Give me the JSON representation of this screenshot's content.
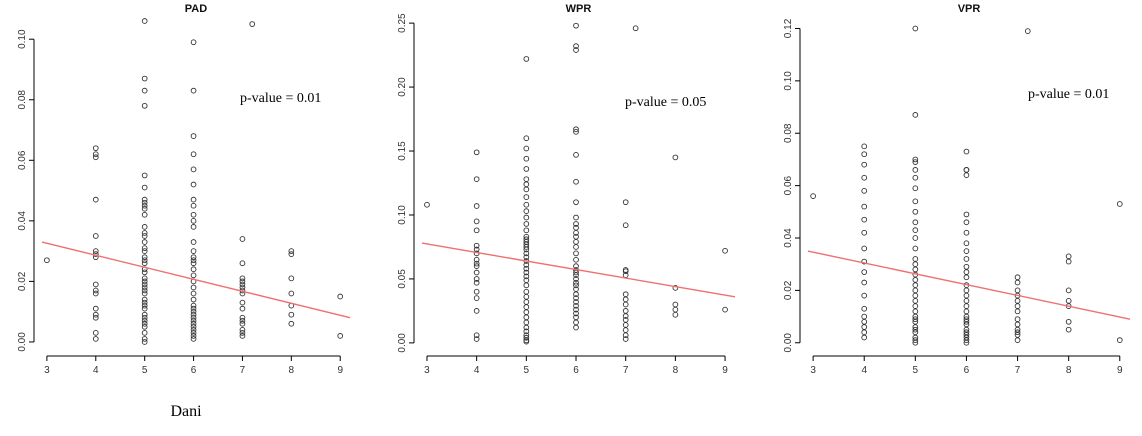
{
  "chart_data": [
    {
      "type": "scatter",
      "title": "PAD",
      "xlabel": "Dani",
      "annotation": "p-value = 0.01",
      "xlim": [
        2.9,
        9.2
      ],
      "ylim": [
        -0.002,
        0.107
      ],
      "xticks": [
        3,
        4,
        5,
        6,
        7,
        8,
        9
      ],
      "yticks": [
        0.0,
        0.02,
        0.04,
        0.06,
        0.08,
        0.1
      ],
      "ytick_labels": [
        "0.00",
        "0.02",
        "0.04",
        "0.06",
        "0.08",
        "0.10"
      ],
      "regression": {
        "x": [
          2.9,
          9.2
        ],
        "y": [
          0.033,
          0.008
        ]
      },
      "x": [
        3,
        4,
        4,
        4,
        4,
        4,
        4,
        4,
        4,
        4,
        4,
        4,
        4,
        4,
        4,
        4,
        4,
        5,
        5,
        5,
        5,
        5,
        5,
        5,
        5,
        5,
        5,
        5,
        5,
        5,
        5,
        5,
        5,
        5,
        5,
        5,
        5,
        5,
        5,
        5,
        5,
        5,
        5,
        5,
        5,
        5,
        5,
        5,
        5,
        5,
        5,
        5,
        5,
        5,
        5,
        5,
        5,
        6,
        6,
        6,
        6,
        6,
        6,
        6,
        6,
        6,
        6,
        6,
        6,
        6,
        6,
        6,
        6,
        6,
        6,
        6,
        6,
        6,
        6,
        6,
        6,
        6,
        6,
        6,
        6,
        6,
        6,
        6,
        6,
        6,
        6,
        7,
        7,
        7,
        7,
        7,
        7,
        7,
        7,
        7,
        7,
        7,
        7,
        7,
        7,
        7,
        7,
        7.2,
        8,
        8,
        8,
        8,
        8,
        8,
        8,
        9,
        9
      ],
      "y": [
        0.027,
        0.064,
        0.062,
        0.061,
        0.047,
        0.035,
        0.03,
        0.029,
        0.028,
        0.019,
        0.017,
        0.016,
        0.011,
        0.009,
        0.008,
        0.003,
        0.001,
        0.106,
        0.087,
        0.083,
        0.078,
        0.055,
        0.051,
        0.047,
        0.046,
        0.045,
        0.044,
        0.042,
        0.038,
        0.036,
        0.035,
        0.033,
        0.031,
        0.03,
        0.028,
        0.027,
        0.026,
        0.024,
        0.023,
        0.021,
        0.02,
        0.019,
        0.018,
        0.017,
        0.016,
        0.014,
        0.013,
        0.012,
        0.011,
        0.009,
        0.008,
        0.007,
        0.006,
        0.005,
        0.003,
        0.001,
        0.0,
        0.099,
        0.083,
        0.068,
        0.062,
        0.057,
        0.052,
        0.047,
        0.045,
        0.042,
        0.04,
        0.038,
        0.033,
        0.03,
        0.028,
        0.027,
        0.026,
        0.024,
        0.022,
        0.02,
        0.018,
        0.016,
        0.014,
        0.012,
        0.011,
        0.01,
        0.009,
        0.008,
        0.007,
        0.006,
        0.005,
        0.004,
        0.003,
        0.002,
        0.001,
        0.034,
        0.026,
        0.021,
        0.02,
        0.019,
        0.018,
        0.017,
        0.016,
        0.013,
        0.011,
        0.008,
        0.007,
        0.006,
        0.004,
        0.003,
        0.002,
        0.105,
        0.03,
        0.029,
        0.021,
        0.016,
        0.012,
        0.009,
        0.006,
        0.015,
        0.002
      ]
    },
    {
      "type": "scatter",
      "title": "WPR",
      "annotation": "p-value = 0.05",
      "xlim": [
        2.9,
        9.2
      ],
      "ylim": [
        -0.004,
        0.254
      ],
      "xticks": [
        3,
        4,
        5,
        6,
        7,
        8,
        9
      ],
      "xtick_labels": [
        "3",
        "4",
        "5",
        "6",
        "7",
        "8",
        "9"
      ],
      "yticks": [
        0.0,
        0.05,
        0.1,
        0.15,
        0.2,
        0.25
      ],
      "ytick_labels": [
        "0.00",
        "0.05",
        "0.10",
        "0.15",
        "0.20",
        "0.25"
      ],
      "regression": {
        "x": [
          2.9,
          9.2
        ],
        "y": [
          0.078,
          0.036
        ]
      },
      "x": [
        3,
        4,
        4,
        4,
        4,
        4,
        4,
        4,
        4,
        4,
        4,
        4,
        4,
        4,
        4,
        4,
        4,
        4,
        4,
        4,
        5,
        5,
        5,
        5,
        5,
        5,
        5,
        5,
        5,
        5,
        5,
        5,
        5,
        5,
        5,
        5,
        5,
        5,
        5,
        5,
        5,
        5,
        5,
        5,
        5,
        5,
        5,
        5,
        5,
        5,
        5,
        5,
        5,
        5,
        5,
        5,
        5,
        5,
        5,
        5,
        5,
        5,
        6,
        6,
        6,
        6,
        6,
        6,
        6,
        6,
        6,
        6,
        6,
        6,
        6,
        6,
        6,
        6,
        6,
        6,
        6,
        6,
        6,
        6,
        6,
        6,
        6,
        6,
        6,
        6,
        6,
        6,
        6,
        6,
        6,
        6,
        7,
        7,
        7,
        7,
        7,
        7,
        7,
        7,
        7,
        7,
        7,
        7,
        7,
        7,
        7,
        7.2,
        8,
        8,
        8,
        8,
        8,
        9,
        9
      ],
      "y": [
        0.108,
        0.149,
        0.128,
        0.107,
        0.095,
        0.088,
        0.076,
        0.073,
        0.07,
        0.065,
        0.062,
        0.06,
        0.055,
        0.05,
        0.047,
        0.04,
        0.035,
        0.025,
        0.006,
        0.003,
        0.222,
        0.16,
        0.152,
        0.144,
        0.136,
        0.128,
        0.124,
        0.12,
        0.114,
        0.108,
        0.103,
        0.098,
        0.093,
        0.088,
        0.083,
        0.081,
        0.079,
        0.077,
        0.075,
        0.073,
        0.07,
        0.067,
        0.064,
        0.061,
        0.058,
        0.055,
        0.052,
        0.049,
        0.045,
        0.04,
        0.036,
        0.032,
        0.028,
        0.024,
        0.02,
        0.016,
        0.012,
        0.009,
        0.006,
        0.004,
        0.002,
        0.001,
        0.248,
        0.232,
        0.229,
        0.167,
        0.165,
        0.147,
        0.126,
        0.11,
        0.098,
        0.093,
        0.09,
        0.086,
        0.083,
        0.079,
        0.075,
        0.07,
        0.065,
        0.06,
        0.057,
        0.055,
        0.053,
        0.05,
        0.047,
        0.045,
        0.042,
        0.038,
        0.035,
        0.032,
        0.029,
        0.026,
        0.023,
        0.02,
        0.016,
        0.012,
        0.11,
        0.092,
        0.057,
        0.056,
        0.053,
        0.038,
        0.034,
        0.03,
        0.025,
        0.021,
        0.018,
        0.014,
        0.01,
        0.006,
        0.003,
        0.246,
        0.145,
        0.043,
        0.03,
        0.026,
        0.022,
        0.072,
        0.026
      ]
    },
    {
      "type": "scatter",
      "title": "VPR",
      "annotation": "p-value = 0.01",
      "xlim": [
        2.9,
        9.2
      ],
      "ylim": [
        -0.002,
        0.124
      ],
      "xticks": [
        3,
        4,
        5,
        6,
        7,
        8,
        9
      ],
      "xtick_labels": [
        "3",
        "4",
        "5",
        "6",
        "7",
        "8",
        "9"
      ],
      "yticks": [
        0.0,
        0.02,
        0.04,
        0.06,
        0.08,
        0.1,
        0.12
      ],
      "ytick_labels": [
        "0.00",
        "0.02",
        "0.04",
        "0.06",
        "0.08",
        "0.10",
        "0.12"
      ],
      "regression": {
        "x": [
          2.9,
          9.2
        ],
        "y": [
          0.035,
          0.009
        ]
      },
      "x": [
        3,
        4,
        4,
        4,
        4,
        4,
        4,
        4,
        4,
        4,
        4,
        4,
        4,
        4,
        4,
        4,
        4,
        4,
        4,
        4,
        5,
        5,
        5,
        5,
        5,
        5,
        5,
        5,
        5,
        5,
        5,
        5,
        5,
        5,
        5,
        5,
        5,
        5,
        5,
        5,
        5,
        5,
        5,
        5,
        5,
        5,
        5,
        5,
        5,
        5,
        5,
        5,
        5,
        6,
        6,
        6,
        6,
        6,
        6,
        6,
        6,
        6,
        6,
        6,
        6,
        6,
        6,
        6,
        6,
        6,
        6,
        6,
        6,
        6,
        6,
        6,
        6,
        6,
        6,
        6,
        6,
        6,
        7,
        7,
        7,
        7,
        7,
        7,
        7,
        7,
        7,
        7,
        7,
        7,
        7,
        7.2,
        8,
        8,
        8,
        8,
        8,
        8,
        8,
        9,
        9
      ],
      "y": [
        0.056,
        0.075,
        0.072,
        0.068,
        0.063,
        0.058,
        0.052,
        0.047,
        0.042,
        0.036,
        0.031,
        0.027,
        0.023,
        0.018,
        0.013,
        0.01,
        0.008,
        0.006,
        0.004,
        0.002,
        0.12,
        0.087,
        0.07,
        0.069,
        0.066,
        0.063,
        0.059,
        0.054,
        0.05,
        0.046,
        0.043,
        0.04,
        0.036,
        0.032,
        0.03,
        0.028,
        0.026,
        0.024,
        0.022,
        0.02,
        0.018,
        0.016,
        0.014,
        0.012,
        0.01,
        0.009,
        0.008,
        0.006,
        0.005,
        0.004,
        0.002,
        0.001,
        0.0,
        0.073,
        0.066,
        0.064,
        0.049,
        0.046,
        0.042,
        0.038,
        0.035,
        0.032,
        0.029,
        0.027,
        0.025,
        0.022,
        0.02,
        0.018,
        0.016,
        0.014,
        0.012,
        0.01,
        0.009,
        0.008,
        0.007,
        0.005,
        0.004,
        0.003,
        0.002,
        0.001,
        0.0,
        0.066,
        0.025,
        0.023,
        0.02,
        0.018,
        0.016,
        0.014,
        0.012,
        0.009,
        0.007,
        0.005,
        0.004,
        0.003,
        0.001,
        0.119,
        0.033,
        0.031,
        0.02,
        0.016,
        0.014,
        0.008,
        0.005,
        0.053,
        0.001
      ]
    }
  ]
}
